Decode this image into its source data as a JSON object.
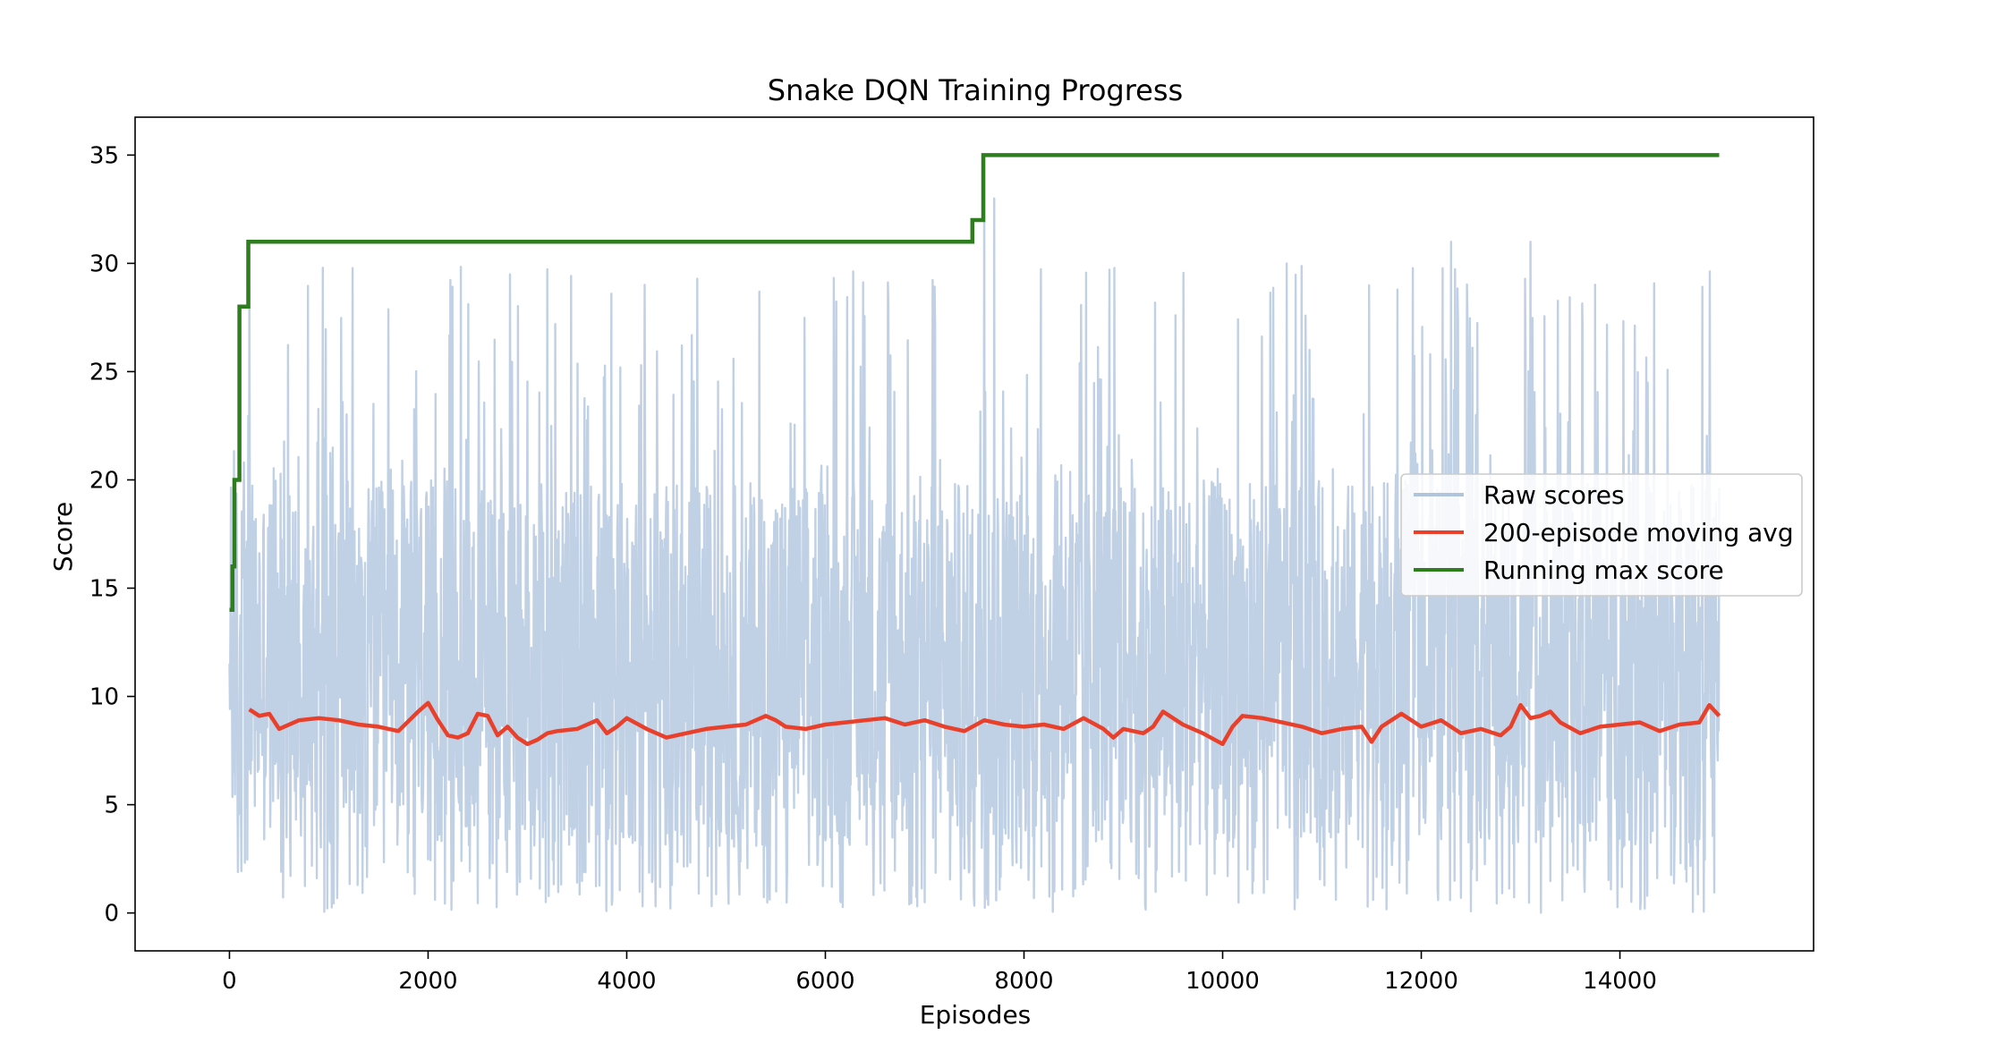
{
  "chart_data": {
    "type": "line",
    "title": "Snake DQN Training Progress",
    "xlabel": "Episodes",
    "ylabel": "Score",
    "xlim": [
      -950,
      15950
    ],
    "ylim": [
      -1.75,
      36.75
    ],
    "xticks": [
      0,
      2000,
      4000,
      6000,
      8000,
      10000,
      12000,
      14000
    ],
    "yticks": [
      0,
      5,
      10,
      15,
      20,
      25,
      30,
      35
    ],
    "grid": false,
    "legend_position": "center-right",
    "series": [
      {
        "name": "Raw scores",
        "color": "#b0c4de",
        "kind": "noisy",
        "episodes": 15000,
        "typical_range": [
          2,
          22
        ],
        "min": 0,
        "max": 35,
        "notable_peaks": [
          [
            200,
            31
          ],
          [
            7600,
            35
          ],
          [
            7700,
            33
          ],
          [
            12300,
            31
          ],
          [
            13100,
            31
          ]
        ]
      },
      {
        "name": "200-episode moving avg",
        "color": "#e8402a",
        "x": [
          200,
          300,
          400,
          500,
          700,
          900,
          1100,
          1300,
          1500,
          1700,
          1900,
          2000,
          2100,
          2200,
          2300,
          2400,
          2500,
          2600,
          2700,
          2800,
          2900,
          3000,
          3100,
          3200,
          3300,
          3500,
          3700,
          3800,
          3900,
          4000,
          4200,
          4400,
          4600,
          4800,
          5000,
          5200,
          5400,
          5500,
          5600,
          5800,
          6000,
          6200,
          6400,
          6600,
          6800,
          7000,
          7200,
          7400,
          7600,
          7800,
          8000,
          8200,
          8400,
          8600,
          8800,
          8900,
          9000,
          9200,
          9300,
          9400,
          9600,
          9800,
          10000,
          10100,
          10200,
          10400,
          10600,
          10800,
          11000,
          11200,
          11400,
          11500,
          11600,
          11800,
          12000,
          12200,
          12400,
          12600,
          12800,
          12900,
          13000,
          13100,
          13200,
          13300,
          13400,
          13600,
          13800,
          14000,
          14200,
          14400,
          14600,
          14800,
          14900,
          15000
        ],
        "y": [
          9.4,
          9.1,
          9.2,
          8.5,
          8.9,
          9.0,
          8.9,
          8.7,
          8.6,
          8.4,
          9.3,
          9.7,
          8.9,
          8.2,
          8.1,
          8.3,
          9.2,
          9.1,
          8.2,
          8.6,
          8.1,
          7.8,
          8.0,
          8.3,
          8.4,
          8.5,
          8.9,
          8.3,
          8.6,
          9.0,
          8.5,
          8.1,
          8.3,
          8.5,
          8.6,
          8.7,
          9.1,
          8.9,
          8.6,
          8.5,
          8.7,
          8.8,
          8.9,
          9.0,
          8.7,
          8.9,
          8.6,
          8.4,
          8.9,
          8.7,
          8.6,
          8.7,
          8.5,
          9.0,
          8.5,
          8.1,
          8.5,
          8.3,
          8.6,
          9.3,
          8.7,
          8.3,
          7.8,
          8.6,
          9.1,
          9.0,
          8.8,
          8.6,
          8.3,
          8.5,
          8.6,
          7.9,
          8.6,
          9.2,
          8.6,
          8.9,
          8.3,
          8.5,
          8.2,
          8.6,
          9.6,
          9.0,
          9.1,
          9.3,
          8.8,
          8.3,
          8.6,
          8.7,
          8.8,
          8.4,
          8.7,
          8.8,
          9.6,
          9.1
        ]
      },
      {
        "name": "Running max score",
        "color": "#2e7d1e",
        "step": true,
        "x": [
          0,
          30,
          50,
          100,
          130,
          190,
          7480,
          7590,
          15000
        ],
        "y": [
          14,
          16,
          20,
          28,
          28,
          31,
          32,
          35,
          35
        ]
      }
    ]
  }
}
